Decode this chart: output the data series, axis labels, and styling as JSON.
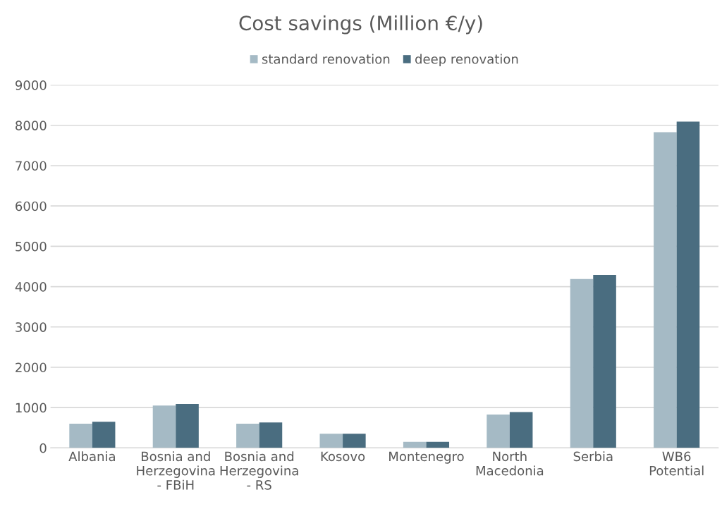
{
  "chart_data": {
    "type": "bar",
    "title": "Cost savings (Million €/y)",
    "categories": [
      "Albania",
      "Bosnia and\nHerzegovina\n- FBiH",
      "Bosnia and\nHerzegovina\n- RS",
      "Kosovo",
      "Montenegro",
      "North\nMacedonia",
      "Serbia",
      "WB6\nPotential"
    ],
    "series": [
      {
        "name": "standard renovation",
        "color": "#a5bac5",
        "values": [
          600,
          1050,
          600,
          350,
          150,
          830,
          4190,
          7830
        ]
      },
      {
        "name": "deep renovation",
        "color": "#4a6d80",
        "values": [
          650,
          1090,
          630,
          350,
          150,
          890,
          4290,
          8090
        ]
      }
    ],
    "ylim": [
      0,
      9000
    ],
    "yticks": [
      0,
      1000,
      2000,
      3000,
      4000,
      5000,
      6000,
      7000,
      8000,
      9000
    ],
    "grid": "y",
    "legend": "top"
  }
}
